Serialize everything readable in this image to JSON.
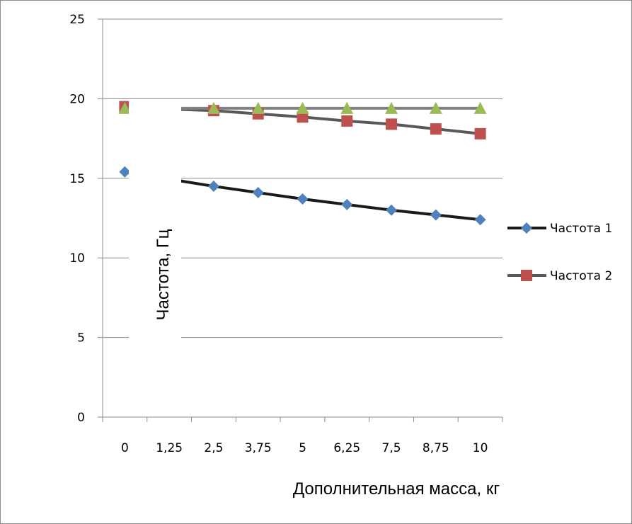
{
  "chart_data": {
    "type": "line",
    "categories": [
      "0",
      "1,25",
      "2,5",
      "3,75",
      "5",
      "6,25",
      "7,5",
      "8,75",
      "10"
    ],
    "series": [
      {
        "name": "Частота 1",
        "values": [
          15.4,
          14.95,
          14.5,
          14.1,
          13.7,
          13.35,
          13.0,
          12.7,
          12.4
        ],
        "color": "#4f81bd",
        "line_color": "#1a1a1a",
        "marker": "diamond"
      },
      {
        "name": "Частота 2",
        "values": [
          19.5,
          19.35,
          19.25,
          19.05,
          18.85,
          18.6,
          18.4,
          18.1,
          17.8
        ],
        "color": "#c0504d",
        "line_color": "#595959",
        "marker": "square"
      },
      {
        "values": [
          19.4,
          19.4,
          19.4,
          19.4,
          19.4,
          19.4,
          19.4,
          19.4,
          19.4
        ],
        "color": "#9bbb59",
        "line_color": "#808080",
        "marker": "triangle"
      }
    ],
    "y_ticks": [
      "0",
      "5",
      "10",
      "15",
      "20",
      "25"
    ],
    "ylim": [
      0,
      25
    ],
    "xlabel": "Дополнительная масса, кг",
    "ylabel": "Частота, Гц",
    "grid": "horizontal",
    "legend_position": "right"
  }
}
